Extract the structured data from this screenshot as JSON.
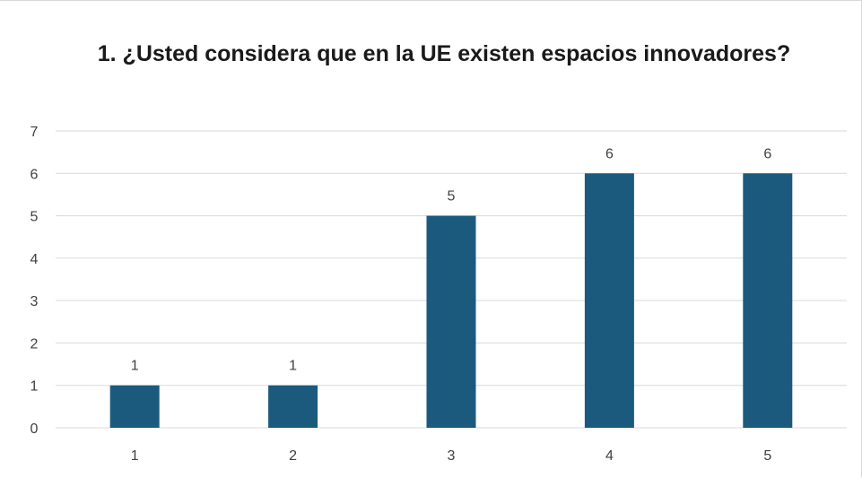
{
  "chart_data": {
    "type": "bar",
    "title": "1. ¿Usted considera que en la UE existen espacios innovadores?",
    "categories": [
      "1",
      "2",
      "3",
      "4",
      "5"
    ],
    "values": [
      1,
      1,
      5,
      6,
      6
    ],
    "data_labels": [
      "1",
      "1",
      "5",
      "6",
      "6"
    ],
    "y_ticks": [
      "0",
      "1",
      "2",
      "3",
      "4",
      "5",
      "6",
      "7"
    ],
    "ylim": [
      0,
      7
    ],
    "grid": true,
    "legend": "none",
    "colors": {
      "bar": "#1c5a7d",
      "grid": "#d9d9d9",
      "text": "#404040"
    }
  }
}
